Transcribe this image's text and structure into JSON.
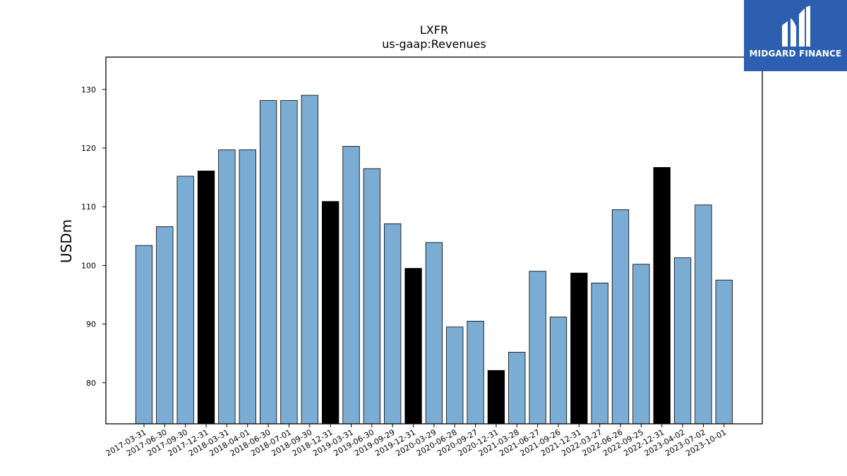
{
  "chart_data": {
    "type": "bar",
    "title": "LXFR",
    "subtitle": "us-gaap:Revenues",
    "ylabel": "USDm",
    "xlabel": "",
    "ylim": [
      73,
      135.5
    ],
    "yticks": [
      80,
      90,
      100,
      110,
      120,
      130
    ],
    "grid": false,
    "categories": [
      "2017-03-31",
      "2017-06-30",
      "2017-09-30",
      "2017-12-31",
      "2018-03-31",
      "2018-04-01",
      "2018-06-30",
      "2018-07-01",
      "2018-09-30",
      "2018-12-31",
      "2019-03-31",
      "2019-06-30",
      "2019-09-29",
      "2019-12-31",
      "2020-03-29",
      "2020-06-28",
      "2020-09-27",
      "2020-12-31",
      "2021-03-28",
      "2021-06-27",
      "2021-09-26",
      "2021-12-31",
      "2022-03-27",
      "2022-06-26",
      "2022-09-25",
      "2022-12-31",
      "2023-04-02",
      "2023-07-02",
      "2023-10-01"
    ],
    "values": [
      103.4,
      106.6,
      115.2,
      116.1,
      119.7,
      119.7,
      128.1,
      128.1,
      129.0,
      110.9,
      120.3,
      116.5,
      107.1,
      99.5,
      103.9,
      89.5,
      90.5,
      82.1,
      85.2,
      99.0,
      91.2,
      98.7,
      97.0,
      109.5,
      100.2,
      116.7,
      101.3,
      110.3,
      97.5
    ],
    "highlight": [
      false,
      false,
      false,
      true,
      false,
      false,
      false,
      false,
      false,
      true,
      false,
      false,
      false,
      true,
      false,
      false,
      false,
      true,
      false,
      false,
      false,
      true,
      false,
      false,
      false,
      true,
      false,
      false,
      false
    ],
    "colors": {
      "bar": "#7bacd3",
      "highlight": "#000000",
      "edge": "#000000"
    }
  },
  "logo": {
    "text": "MIDGARD FINANCE",
    "background": "#2d5fb0"
  }
}
